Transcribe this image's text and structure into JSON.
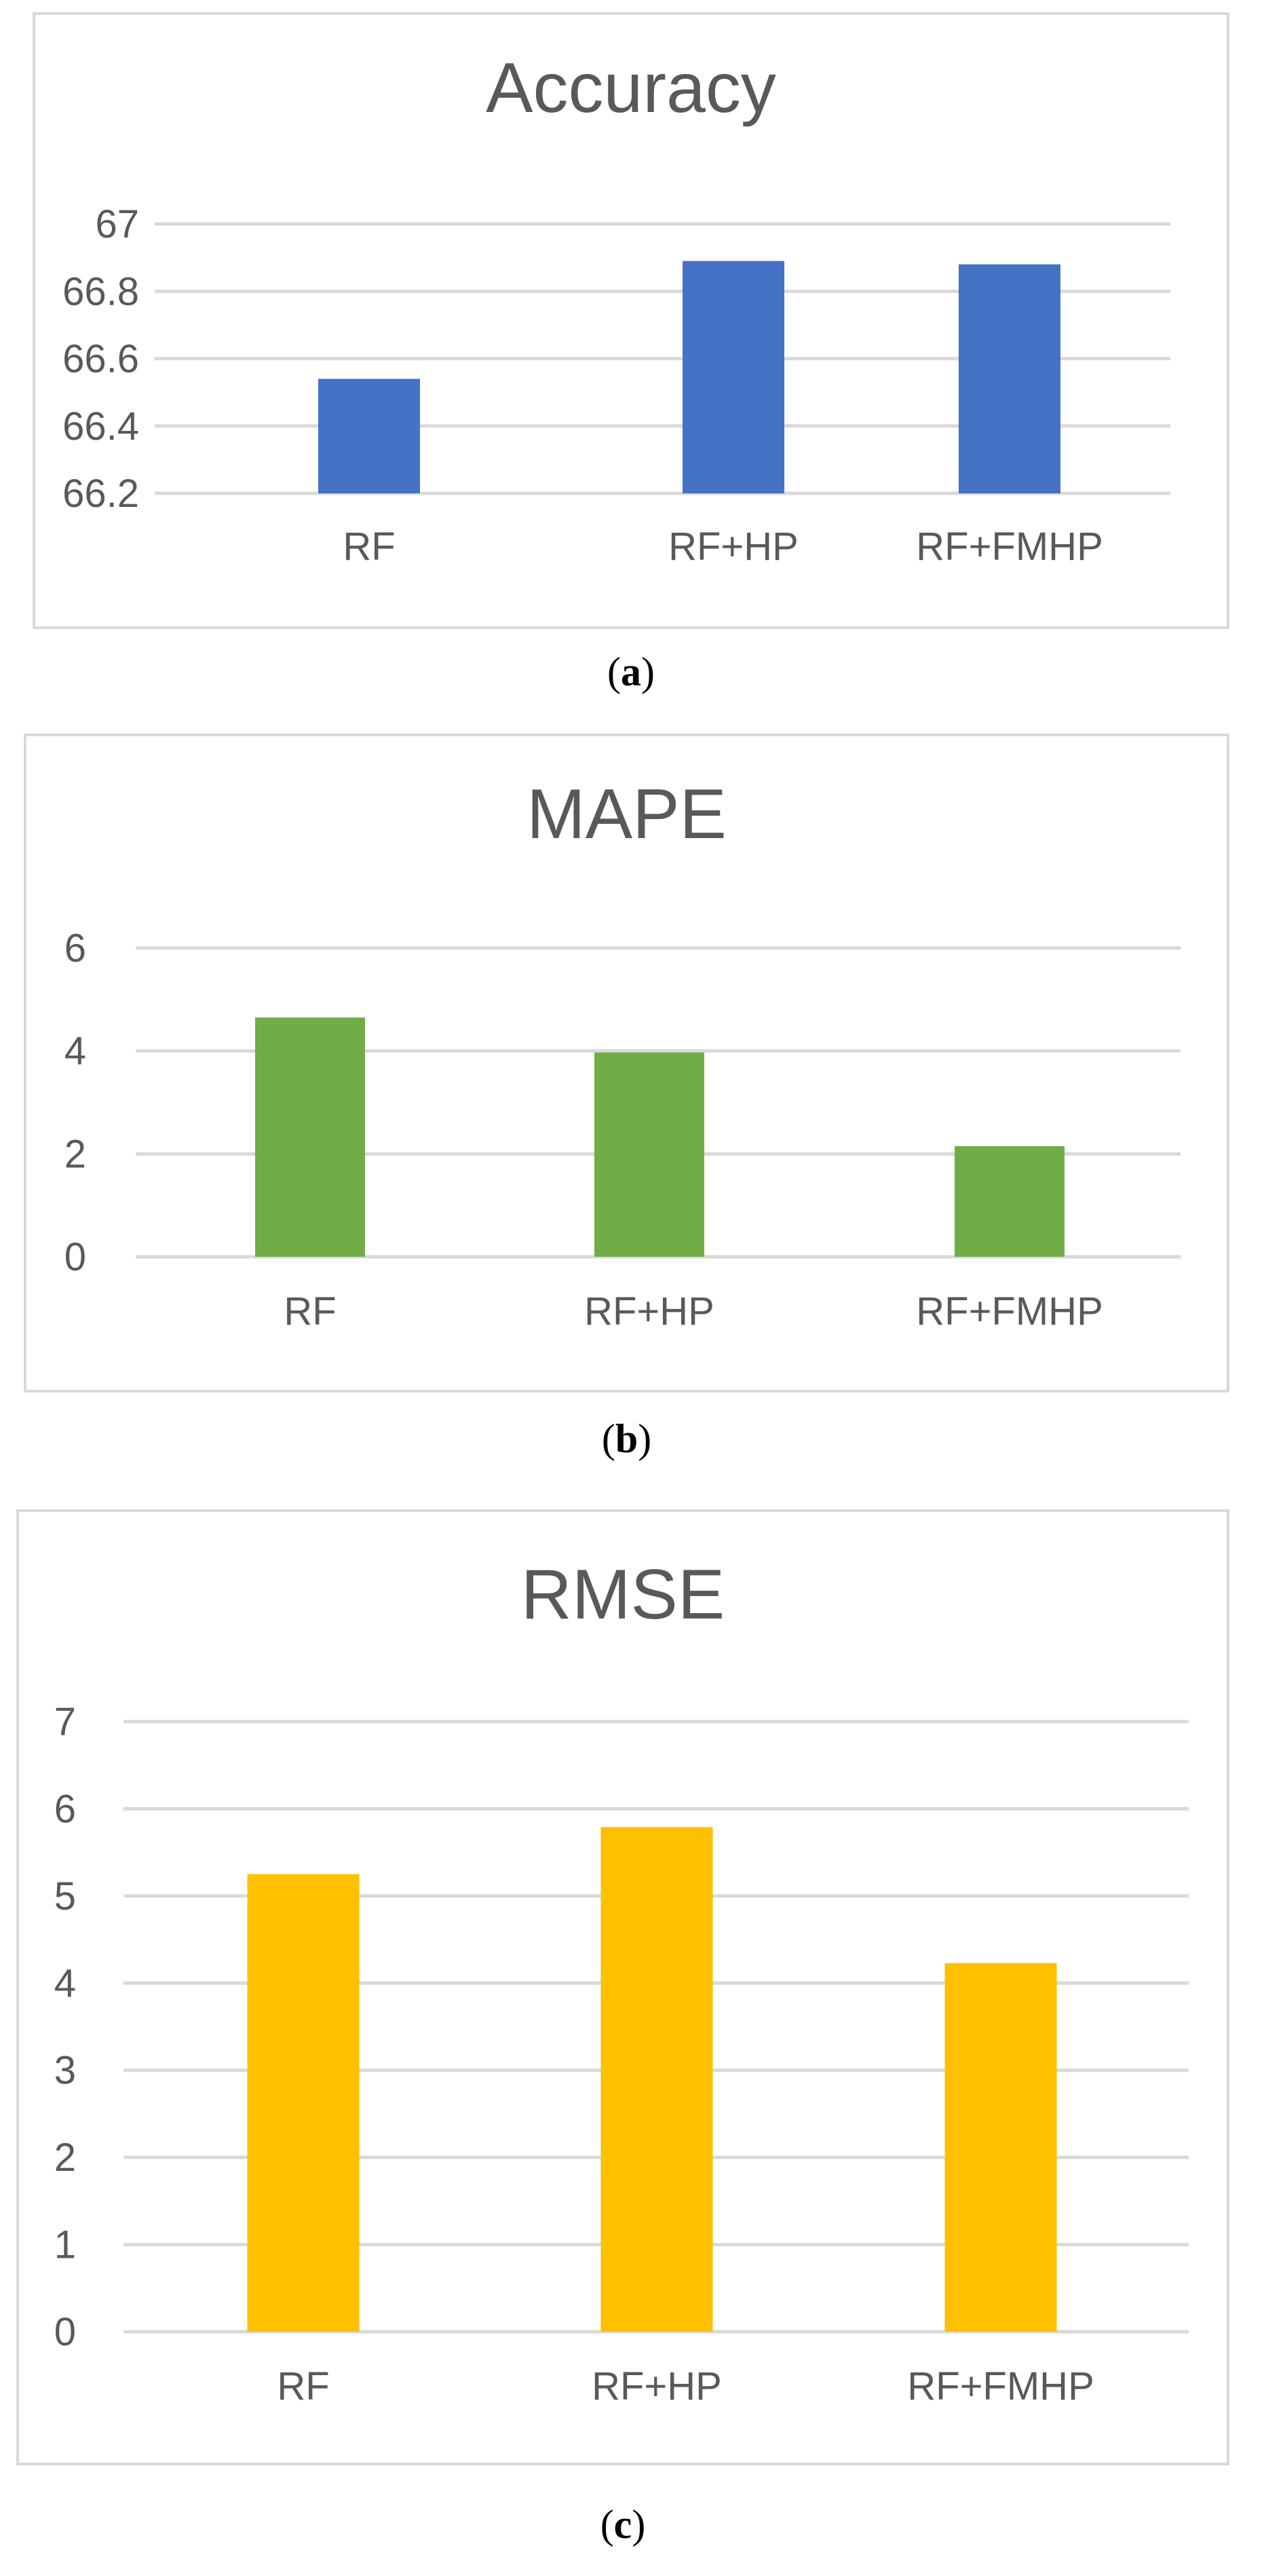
{
  "chart_data": [
    {
      "type": "bar",
      "panel": "(a)",
      "panel_letter": "a",
      "title": "Accuracy",
      "categories": [
        "RF",
        "RF+HP",
        "RF+FMHP"
      ],
      "values": [
        66.54,
        66.89,
        66.88
      ],
      "ylim": [
        66.2,
        67
      ],
      "yticks": [
        "67",
        "66.8",
        "66.6",
        "66.4",
        "66.2"
      ],
      "grid": true,
      "legend": "none",
      "color": "#4472C4"
    },
    {
      "type": "bar",
      "panel": "(b)",
      "panel_letter": "b",
      "title": "MAPE",
      "categories": [
        "RF",
        "RF+HP",
        "RF+FMHP"
      ],
      "values": [
        4.65,
        3.97,
        2.15
      ],
      "ylim": [
        0,
        6
      ],
      "yticks": [
        "6",
        "4",
        "2",
        "0"
      ],
      "grid": true,
      "legend": "none",
      "color": "#70AD47"
    },
    {
      "type": "bar",
      "panel": "(c)",
      "panel_letter": "c",
      "title": "RMSE",
      "categories": [
        "RF",
        "RF+HP",
        "RF+FMHP"
      ],
      "values": [
        5.25,
        5.79,
        4.23
      ],
      "ylim": [
        0,
        7
      ],
      "yticks": [
        "7",
        "6",
        "5",
        "4",
        "3",
        "2",
        "1",
        "0"
      ],
      "grid": true,
      "legend": "none",
      "color": "#FFC000"
    }
  ]
}
